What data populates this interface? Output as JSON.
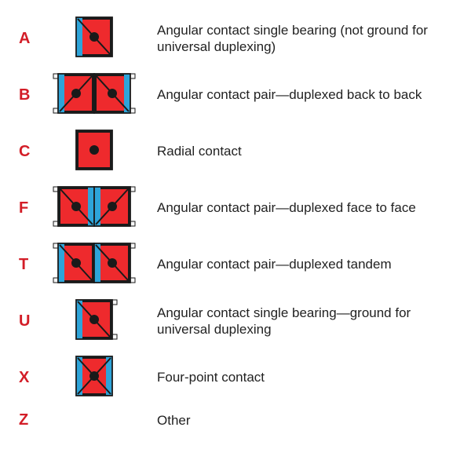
{
  "colors": {
    "letter": "#d31d27",
    "bearing_red": "#ee2a2d",
    "bearing_black": "#1a1a1a",
    "bearing_blue": "#2ea4d9",
    "bearing_grey": "#f7f7f7",
    "text": "#222222",
    "bg": "#ffffff"
  },
  "letter_fontsize": 20,
  "desc_fontsize": 17,
  "rows": [
    {
      "letter": "A",
      "icon": "single_angular",
      "desc": "Angular contact single bearing (not ground for universal duplexing)"
    },
    {
      "letter": "B",
      "icon": "pair_back_to_back",
      "desc": "Angular contact pair—duplexed back to back"
    },
    {
      "letter": "C",
      "icon": "radial",
      "desc": "Radial contact"
    },
    {
      "letter": "F",
      "icon": "pair_face_to_face",
      "desc": "Angular contact pair—duplexed face to face"
    },
    {
      "letter": "T",
      "icon": "pair_tandem",
      "desc": "Angular contact pair—duplexed tandem"
    },
    {
      "letter": "U",
      "icon": "single_angular_ground",
      "desc": "Angular contact single bearing—ground for universal duplexing"
    },
    {
      "letter": "X",
      "icon": "four_point",
      "desc": "Four-point contact"
    },
    {
      "letter": "Z",
      "icon": "none",
      "desc": "Other"
    }
  ],
  "icon_svg": {
    "unit_w": 46,
    "unit_h": 50,
    "stroke_w": 1.8,
    "diag_stroke_w": 2.0
  }
}
